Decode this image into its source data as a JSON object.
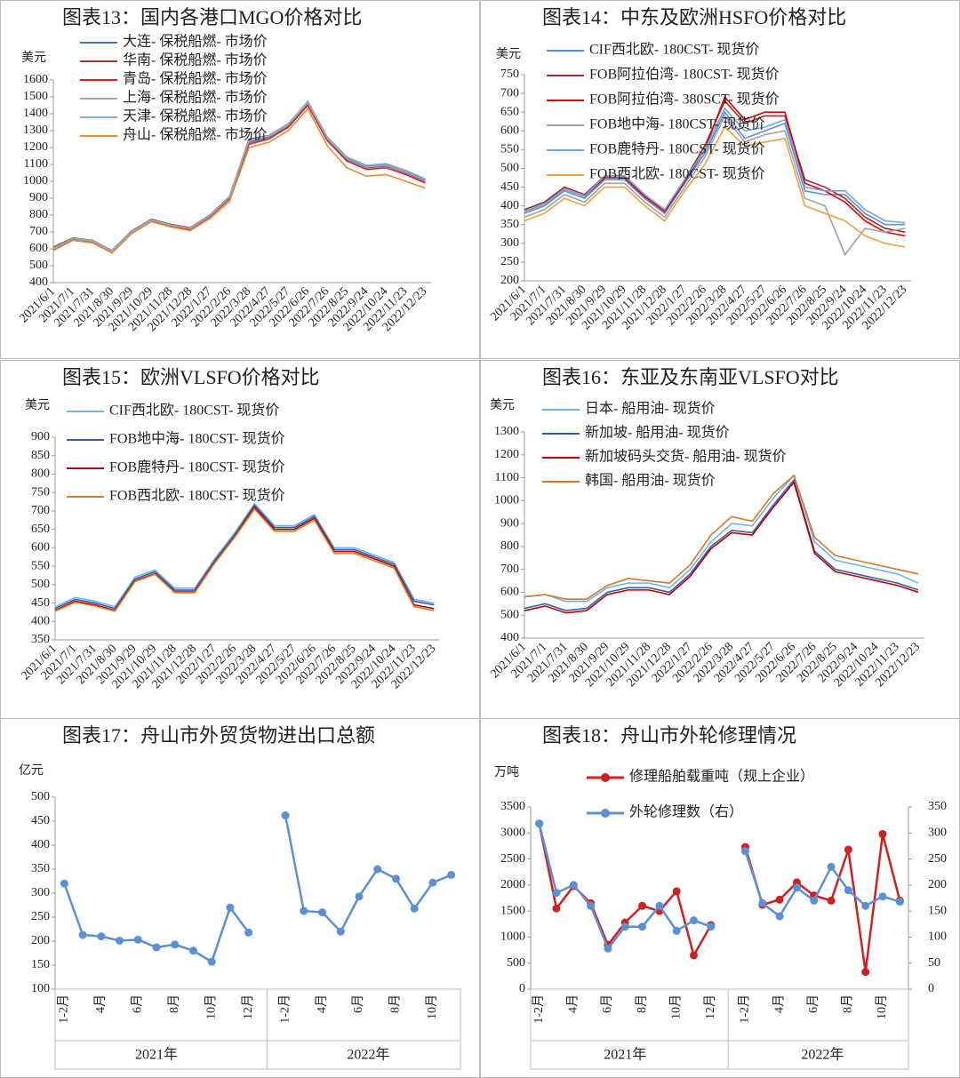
{
  "chart_data": [
    {
      "type": "line",
      "title": "图表13：国内各港口MGO价格对比",
      "y_label": "美元",
      "categories": [
        "2021/6/1",
        "2021/7/1",
        "2021/7/31",
        "2021/8/30",
        "2021/9/29",
        "2021/10/29",
        "2021/11/28",
        "2021/12/28",
        "2022/1/27",
        "2022/2/26",
        "2022/3/28",
        "2022/4/27",
        "2022/5/27",
        "2022/6/26",
        "2022/7/26",
        "2022/8/25",
        "2022/9/24",
        "2022/10/24",
        "2022/11/23",
        "2022/12/23"
      ],
      "ylim": [
        400,
        1600
      ],
      "yticks": [
        400,
        500,
        600,
        700,
        800,
        900,
        1000,
        1100,
        1200,
        1300,
        1400,
        1500,
        1600
      ],
      "series": [
        {
          "name": "大连- 保税船燃- 市场价",
          "color": "#4472c4",
          "values": [
            600,
            660,
            640,
            580,
            700,
            770,
            740,
            720,
            790,
            900,
            1230,
            1260,
            1330,
            1460,
            1250,
            1130,
            1080,
            1090,
            1050,
            1000
          ]
        },
        {
          "name": "华南- 保税船燃- 市场价",
          "color": "#a5322f",
          "values": [
            610,
            665,
            650,
            590,
            705,
            775,
            745,
            725,
            800,
            910,
            1250,
            1270,
            1340,
            1470,
            1260,
            1140,
            1090,
            1100,
            1060,
            1010
          ]
        },
        {
          "name": "青岛- 保税船燃- 市场价",
          "color": "#e02020",
          "values": [
            595,
            655,
            640,
            585,
            695,
            765,
            735,
            715,
            790,
            895,
            1220,
            1250,
            1320,
            1450,
            1240,
            1120,
            1070,
            1080,
            1040,
            990
          ]
        },
        {
          "name": "上海- 保税船燃- 市场价",
          "color": "#a6a6a6",
          "values": [
            605,
            660,
            645,
            585,
            700,
            770,
            740,
            720,
            795,
            905,
            1240,
            1265,
            1335,
            1465,
            1255,
            1135,
            1085,
            1095,
            1055,
            1005
          ]
        },
        {
          "name": "天津- 保税船燃- 市场价",
          "color": "#7fb2d6",
          "values": [
            600,
            662,
            648,
            588,
            702,
            772,
            742,
            722,
            797,
            908,
            1245,
            1268,
            1338,
            1475,
            1262,
            1145,
            1095,
            1105,
            1065,
            1015
          ]
        },
        {
          "name": "舟山- 保税船燃- 市场价",
          "color": "#e88c30",
          "values": [
            590,
            650,
            635,
            575,
            690,
            760,
            730,
            708,
            780,
            880,
            1200,
            1230,
            1300,
            1430,
            1210,
            1080,
            1030,
            1040,
            1000,
            960
          ]
        }
      ]
    },
    {
      "type": "line",
      "title": "图表14：中东及欧洲HSFO价格对比",
      "y_label": "美元",
      "categories": [
        "2021/6/1",
        "2021/7/1",
        "2021/7/31",
        "2021/8/30",
        "2021/9/29",
        "2021/10/29",
        "2021/11/28",
        "2021/12/28",
        "2022/1/27",
        "2022/2/26",
        "2022/3/28",
        "2022/4/27",
        "2022/5/27",
        "2022/6/26",
        "2022/7/26",
        "2022/8/25",
        "2022/9/24",
        "2022/10/24",
        "2022/11/23",
        "2022/12/23"
      ],
      "ylim": [
        200,
        750
      ],
      "yticks": [
        200,
        250,
        300,
        350,
        400,
        450,
        500,
        550,
        600,
        650,
        700,
        750
      ],
      "series": [
        {
          "name": "CIF西北欧- 180CST- 现货价",
          "color": "#5b8fd6",
          "values": [
            380,
            400,
            440,
            420,
            470,
            470,
            420,
            380,
            460,
            540,
            650,
            580,
            600,
            620,
            440,
            430,
            430,
            380,
            350,
            350
          ]
        },
        {
          "name": "FOB阿拉伯湾- 180CST- 现货价",
          "color": "#a52a2a",
          "values": [
            390,
            410,
            450,
            430,
            480,
            480,
            430,
            390,
            470,
            560,
            680,
            620,
            640,
            640,
            470,
            450,
            420,
            370,
            340,
            330
          ]
        },
        {
          "name": "FOB阿拉伯湾- 380SCT- 现货价",
          "color": "#e00000",
          "values": [
            385,
            405,
            445,
            425,
            475,
            475,
            425,
            385,
            465,
            550,
            690,
            630,
            650,
            650,
            460,
            440,
            410,
            360,
            330,
            320
          ]
        },
        {
          "name": "FOB地中海- 180CST- 现货价",
          "color": "#a0a0a0",
          "values": [
            370,
            390,
            430,
            410,
            460,
            460,
            410,
            370,
            450,
            530,
            640,
            570,
            590,
            600,
            420,
            400,
            270,
            340,
            330,
            340
          ]
        },
        {
          "name": "FOB鹿特丹- 180CST- 现货价",
          "color": "#6fa8dc",
          "values": [
            385,
            405,
            445,
            425,
            480,
            480,
            430,
            390,
            470,
            550,
            660,
            600,
            610,
            630,
            450,
            440,
            440,
            390,
            360,
            355
          ]
        },
        {
          "name": "FOB西北欧- 180CST- 现货价",
          "color": "#f0a040",
          "values": [
            360,
            380,
            420,
            400,
            450,
            450,
            400,
            360,
            440,
            510,
            610,
            560,
            570,
            580,
            400,
            380,
            360,
            320,
            300,
            290
          ]
        }
      ]
    },
    {
      "type": "line",
      "title": "图表15：欧洲VLSFO价格对比",
      "y_label": "美元",
      "categories": [
        "2021/6/1",
        "2021/7/1",
        "2021/7/31",
        "2021/8/30",
        "2021/9/29",
        "2021/10/29",
        "2021/11/28",
        "2021/12/28",
        "2022/1/27",
        "2022/2/26",
        "2022/3/28",
        "2022/4/27",
        "2022/5/27",
        "2022/6/26",
        "2022/7/26",
        "2022/8/25",
        "2022/9/24",
        "2022/10/24",
        "2022/11/23",
        "2022/12/23"
      ],
      "ylim": [
        350,
        900
      ],
      "yticks": [
        350,
        400,
        450,
        500,
        550,
        600,
        650,
        700,
        750,
        800,
        850,
        900
      ],
      "series": [
        {
          "name": "CIF西北欧- 180CST- 现货价",
          "color": "#6fb4e8",
          "values": [
            440,
            465,
            455,
            440,
            520,
            540,
            490,
            490,
            570,
            640,
            720,
            660,
            660,
            690,
            600,
            600,
            580,
            560,
            460,
            450
          ]
        },
        {
          "name": "FOB地中海- 180CST- 现货价",
          "color": "#2f5fb0",
          "values": [
            435,
            460,
            450,
            435,
            515,
            535,
            485,
            485,
            565,
            635,
            715,
            655,
            655,
            685,
            595,
            595,
            575,
            555,
            455,
            445
          ]
        },
        {
          "name": "FOB鹿特丹- 180CST- 现货价",
          "color": "#c00000",
          "values": [
            430,
            455,
            445,
            430,
            510,
            530,
            480,
            480,
            560,
            630,
            710,
            650,
            650,
            680,
            590,
            590,
            570,
            550,
            445,
            435
          ]
        },
        {
          "name": "FOB西北欧- 180CST- 现货价",
          "color": "#e07b20",
          "values": [
            428,
            452,
            442,
            428,
            508,
            528,
            478,
            478,
            558,
            628,
            705,
            645,
            645,
            675,
            585,
            585,
            565,
            545,
            440,
            430
          ]
        }
      ]
    },
    {
      "type": "line",
      "title": "图表16：东亚及东南亚VLSFO对比",
      "y_label": "美元",
      "categories": [
        "2021/6/1",
        "2021/7/1",
        "2021/7/31",
        "2021/8/30",
        "2021/9/29",
        "2021/10/29",
        "2021/11/28",
        "2021/12/28",
        "2022/1/27",
        "2022/2/26",
        "2022/3/28",
        "2022/4/27",
        "2022/5/27",
        "2022/6/26",
        "2022/7/26",
        "2022/8/25",
        "2022/9/24",
        "2022/10/24",
        "2022/11/23",
        "2022/12/23"
      ],
      "ylim": [
        400,
        1300
      ],
      "yticks": [
        400,
        500,
        600,
        700,
        800,
        900,
        1000,
        1100,
        1200,
        1300
      ],
      "series": [
        {
          "name": "日本- 船用油- 现货价",
          "color": "#6fb4e8",
          "values": [
            580,
            590,
            560,
            560,
            620,
            640,
            640,
            620,
            700,
            820,
            900,
            890,
            1010,
            1110,
            820,
            740,
            720,
            700,
            680,
            640
          ]
        },
        {
          "name": "新加坡- 船用油- 现货价",
          "color": "#2f5fb0",
          "values": [
            530,
            550,
            520,
            530,
            600,
            620,
            620,
            600,
            680,
            800,
            870,
            860,
            980,
            1090,
            780,
            700,
            680,
            660,
            640,
            610
          ]
        },
        {
          "name": "新加坡码头交货- 船用油- 现货价",
          "color": "#c00000",
          "values": [
            520,
            540,
            510,
            520,
            590,
            610,
            610,
            590,
            670,
            790,
            860,
            850,
            970,
            1080,
            770,
            690,
            670,
            650,
            630,
            600
          ]
        },
        {
          "name": "韩国- 船用油- 现货价",
          "color": "#d4782a",
          "values": [
            580,
            590,
            570,
            570,
            630,
            660,
            650,
            640,
            720,
            850,
            930,
            910,
            1030,
            1110,
            840,
            760,
            740,
            720,
            700,
            680
          ]
        }
      ]
    },
    {
      "type": "line",
      "title": "图表17：舟山市外贸货物进出口总额",
      "y_label": "亿元",
      "color": "#5b8fd6",
      "ylim": [
        100,
        500
      ],
      "yticks": [
        100,
        150,
        200,
        250,
        300,
        350,
        400,
        450,
        500
      ],
      "groups": [
        {
          "name": "2021年",
          "categories": [
            "1-2月",
            null,
            "4月",
            null,
            "6月",
            null,
            "8月",
            null,
            "10月",
            null,
            "12月"
          ],
          "values": [
            320,
            213,
            210,
            201,
            203,
            187,
            193,
            180,
            157,
            270,
            218
          ]
        },
        {
          "name": "2022年",
          "categories": [
            "1-2月",
            null,
            "4月",
            null,
            "6月",
            null,
            "8月",
            null,
            "10月",
            null
          ],
          "values": [
            462,
            263,
            260,
            220,
            293,
            350,
            330,
            268,
            322,
            338
          ]
        }
      ]
    },
    {
      "type": "line",
      "title": "图表18：舟山市外轮修理情况",
      "y_label": "万吨",
      "ylim": [
        0,
        3500
      ],
      "yticks": [
        0,
        500,
        1000,
        1500,
        2000,
        2500,
        3000,
        3500
      ],
      "y2lim": [
        0,
        350
      ],
      "y2ticks": [
        0,
        50,
        100,
        150,
        200,
        250,
        300,
        350
      ],
      "series": [
        {
          "name": "修理船舶载重吨（规上企业）",
          "color": "#d02020"
        },
        {
          "name": "外轮修理数（右）",
          "color": "#5b8fd6",
          "axis": "y2"
        }
      ],
      "groups": [
        {
          "name": "2021年",
          "categories": [
            "1-2月",
            null,
            "4月",
            null,
            "6月",
            null,
            "8月",
            null,
            "10月",
            null,
            "12月"
          ],
          "values": [
            [
              3180,
              1550,
              1980,
              1650,
              850,
              1280,
              1600,
              1500,
              1880,
              650,
              1230
            ],
            [
              318,
              185,
              200,
              160,
              78,
              120,
              120,
              160,
              112,
              132,
              120
            ]
          ]
        },
        {
          "name": "2022年",
          "categories": [
            "1-2月",
            null,
            "4月",
            null,
            "6月",
            null,
            "8月",
            null,
            "10月",
            null
          ],
          "values": [
            [
              2730,
              1620,
              1720,
              2050,
              1800,
              1700,
              2680,
              330,
              2980,
              1700
            ],
            [
              265,
              165,
              140,
              195,
              170,
              235,
              190,
              160,
              178,
              168
            ]
          ]
        }
      ]
    }
  ]
}
